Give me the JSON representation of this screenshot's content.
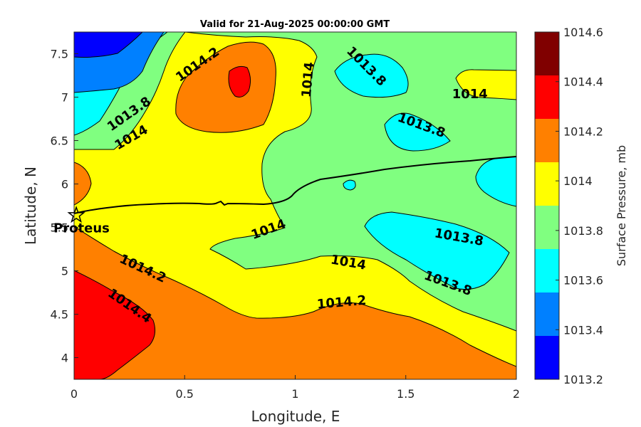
{
  "title": "Valid for 21-Aug-2025 00:00:00 GMT",
  "x_axis": {
    "label": "Longitude, E",
    "range": [
      0,
      2
    ],
    "ticks": [
      "0",
      "0.5",
      "1",
      "1.5",
      "2"
    ]
  },
  "y_axis": {
    "label": "Latitude, N",
    "range": [
      3.75,
      7.75
    ],
    "ticks": [
      "4",
      "4.5",
      "5",
      "5.5",
      "6",
      "6.5",
      "7",
      "7.5"
    ]
  },
  "colorbar": {
    "label": "Surface Pressure, mb",
    "levels": [
      "1013.2",
      "1013.4",
      "1013.6",
      "1013.8",
      "1014",
      "1014.2",
      "1014.4",
      "1014.6"
    ],
    "colors": [
      "#0000ff",
      "#0080ff",
      "#00ffff",
      "#80ff80",
      "#ffff00",
      "#ff8000",
      "#ff0000",
      "#800000"
    ]
  },
  "contour_labels": [
    {
      "text": "1014.2",
      "lon": 0.56,
      "lat": 7.37,
      "angle": -35
    },
    {
      "text": "1014",
      "lon": 1.06,
      "lat": 7.2,
      "angle": -85
    },
    {
      "text": "1013.8",
      "lon": 1.32,
      "lat": 7.35,
      "angle": 45
    },
    {
      "text": "1014",
      "lon": 1.79,
      "lat": 7.03,
      "angle": 0
    },
    {
      "text": "1013.8",
      "lon": 0.25,
      "lat": 6.8,
      "angle": -35
    },
    {
      "text": "1014",
      "lon": 0.26,
      "lat": 6.53,
      "angle": -30
    },
    {
      "text": "1013.8",
      "lon": 1.57,
      "lat": 6.67,
      "angle": 20
    },
    {
      "text": "1014",
      "lon": 0.88,
      "lat": 5.47,
      "angle": -20
    },
    {
      "text": "1013.8",
      "lon": 1.74,
      "lat": 5.38,
      "angle": 10
    },
    {
      "text": "1014.2",
      "lon": 0.31,
      "lat": 5.02,
      "angle": 25
    },
    {
      "text": "1014",
      "lon": 1.24,
      "lat": 5.09,
      "angle": 10
    },
    {
      "text": "1013.8",
      "lon": 1.69,
      "lat": 4.85,
      "angle": 20
    },
    {
      "text": "1014.4",
      "lon": 0.25,
      "lat": 4.59,
      "angle": 35
    },
    {
      "text": "1014.2",
      "lon": 1.21,
      "lat": 4.63,
      "angle": -5
    }
  ],
  "station": {
    "name": "Proteus",
    "lon": 0.01,
    "lat": 5.64,
    "marker": "star-icon"
  }
}
